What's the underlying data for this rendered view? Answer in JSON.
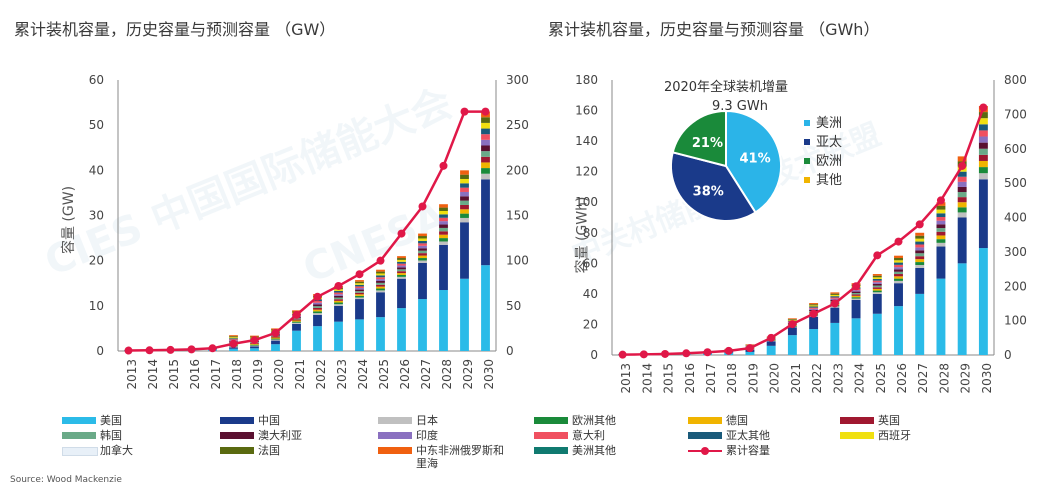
{
  "chart_data": [
    {
      "type": "bar",
      "stacked": true,
      "title": "累计装机容量，历史容量与预测容量 （GW）",
      "ylabel": "容量 (GW)",
      "ylim": [
        0,
        60
      ],
      "y2lim": [
        0,
        300
      ],
      "yticks": [
        "0",
        "10",
        "20",
        "30",
        "40",
        "50",
        "60"
      ],
      "y2ticks": [
        "0",
        "50",
        "100",
        "150",
        "200",
        "250",
        "300"
      ],
      "categories": [
        "2013",
        "2014",
        "2015",
        "2016",
        "2017",
        "2018",
        "2019",
        "2020",
        "2021",
        "2022",
        "2023",
        "2024",
        "2025",
        "2026",
        "2027",
        "2028",
        "2029",
        "2030"
      ],
      "series": [
        {
          "name": "美国",
          "values": [
            0.1,
            0.1,
            0.2,
            0.3,
            0.4,
            0.5,
            0.6,
            1.5,
            4.5,
            5.5,
            6.5,
            7.0,
            7.5,
            9.5,
            11.5,
            13.5,
            16.0,
            19.0
          ]
        },
        {
          "name": "中国",
          "values": [
            0.05,
            0.05,
            0.05,
            0.1,
            0.15,
            0.3,
            0.4,
            0.8,
            1.5,
            2.5,
            3.5,
            4.5,
            5.5,
            6.5,
            8.0,
            10.0,
            12.5,
            19.0
          ]
        },
        {
          "name": "其他",
          "values": [
            0.05,
            0.05,
            0.05,
            0.1,
            0.15,
            2.7,
            2.4,
            2.7,
            3.0,
            4.6,
            4.4,
            4.2,
            5.0,
            5.0,
            6.5,
            9.0,
            11.5,
            15.0
          ]
        },
        {
          "name": "累计容量",
          "axis": "right",
          "values": [
            0.5,
            0.8,
            1.2,
            1.8,
            3,
            8,
            12,
            20,
            40,
            60,
            72,
            85,
            100,
            130,
            160,
            205,
            265,
            265
          ]
        }
      ]
    },
    {
      "type": "bar",
      "stacked": true,
      "title": "累计装机容量，历史容量与预测容量 （GWh）",
      "ylabel": "容量 (GWh)",
      "ylim": [
        0,
        180
      ],
      "y2lim": [
        0,
        800
      ],
      "yticks": [
        "0",
        "20",
        "40",
        "60",
        "80",
        "100",
        "120",
        "140",
        "160",
        "180"
      ],
      "y2ticks": [
        "0",
        "100",
        "200",
        "300",
        "400",
        "500",
        "600",
        "700",
        "800"
      ],
      "categories": [
        "2013",
        "2014",
        "2015",
        "2016",
        "2017",
        "2018",
        "2019",
        "2020",
        "2021",
        "2022",
        "2023",
        "2024",
        "2025",
        "2026",
        "2027",
        "2028",
        "2029",
        "2030"
      ],
      "series": [
        {
          "name": "美国",
          "values": [
            0.3,
            0.4,
            0.5,
            0.7,
            1,
            1.5,
            2,
            6,
            13,
            17,
            21,
            24,
            27,
            32,
            40,
            50,
            60,
            70
          ]
        },
        {
          "name": "亚太其他/中国",
          "values": [
            0.2,
            0.3,
            0.4,
            0.5,
            0.7,
            1,
            1.5,
            3,
            5,
            8,
            10,
            12,
            13,
            15,
            17,
            21,
            30,
            45
          ]
        },
        {
          "name": "其他",
          "values": [
            0.2,
            0.3,
            0.4,
            0.5,
            0.8,
            1.5,
            3.5,
            3,
            6,
            9,
            10,
            11,
            13,
            18,
            23,
            29,
            40,
            48
          ]
        },
        {
          "name": "累计容量",
          "axis": "right",
          "values": [
            1,
            2,
            3,
            5,
            8,
            12,
            20,
            50,
            90,
            120,
            150,
            200,
            290,
            330,
            380,
            450,
            550,
            720
          ]
        }
      ]
    }
  ],
  "pie": {
    "title_line1": "2020年全球装机增量",
    "title_line2": "9.3 GWh",
    "slices": [
      {
        "name": "美洲",
        "value": 41,
        "label": "41%",
        "color": "#2bb4e8"
      },
      {
        "name": "亚太",
        "value": 38,
        "label": "38%",
        "color": "#1a3a8a"
      },
      {
        "name": "欧洲",
        "value": 21,
        "label": "21%",
        "color": "#1a8a3a"
      },
      {
        "name": "其他",
        "value": 0,
        "label": "",
        "color": "#f0b400"
      }
    ]
  },
  "legend": [
    {
      "name": "美国",
      "color": "#2bbbe8"
    },
    {
      "name": "中国",
      "color": "#1a3a8a"
    },
    {
      "name": "日本",
      "color": "#c0c0c0"
    },
    {
      "name": "欧洲其他",
      "color": "#1a8a3a"
    },
    {
      "name": "德国",
      "color": "#f0b400"
    },
    {
      "name": "英国",
      "color": "#a01830"
    },
    {
      "name": "韩国",
      "color": "#6aaa88"
    },
    {
      "name": "澳大利亚",
      "color": "#5a1030"
    },
    {
      "name": "印度",
      "color": "#8a70c0"
    },
    {
      "name": "意大利",
      "color": "#f05060"
    },
    {
      "name": "亚太其他",
      "color": "#1a5a7a"
    },
    {
      "name": "西班牙",
      "color": "#f0e010"
    },
    {
      "name": "加拿大",
      "color": "#e8f0f8"
    },
    {
      "name": "法国",
      "color": "#5a6a10"
    },
    {
      "name": "中东非洲俄罗斯和里海",
      "color": "#f06010"
    },
    {
      "name": "美洲其他",
      "color": "#107a70"
    },
    {
      "name": "累计容量",
      "color": "#e01848"
    }
  ],
  "source": "Source: Wood Mackenzie",
  "watermarks": [
    "CIES 中国国际储能大会",
    "CNESA",
    "中关村储能产业技术联盟"
  ]
}
